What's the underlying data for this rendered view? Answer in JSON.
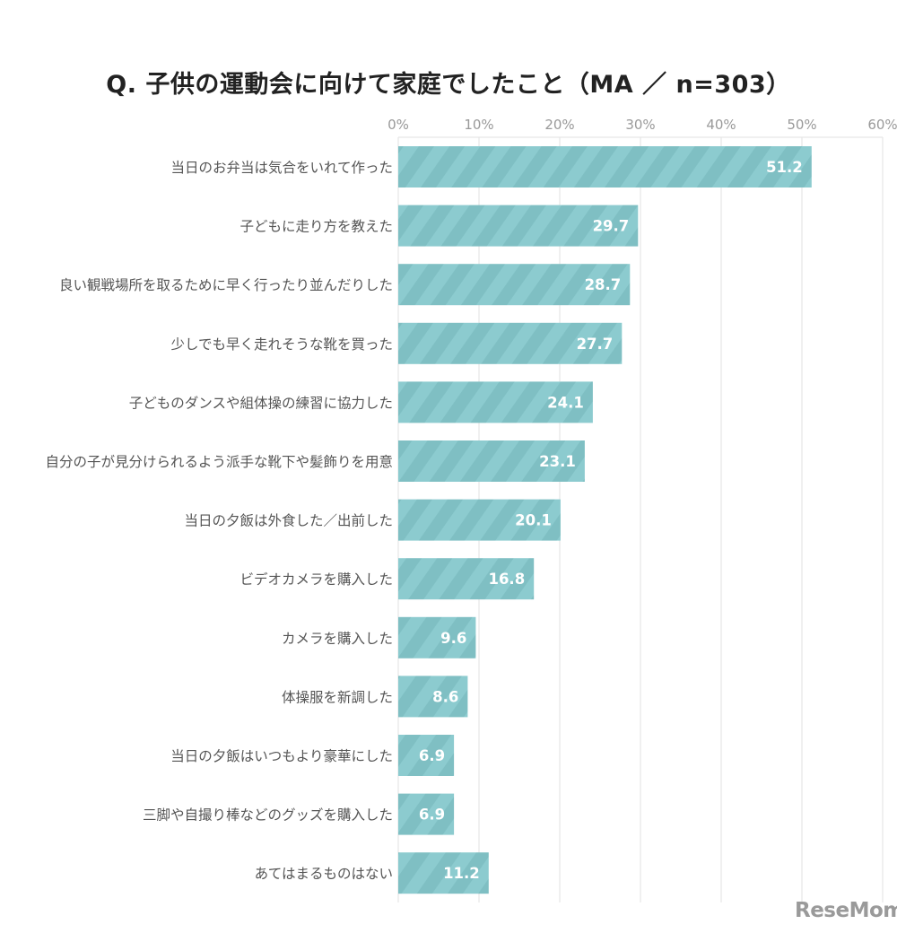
{
  "chart_data": {
    "type": "bar",
    "orientation": "horizontal",
    "title": "Q. 子供の運動会に向けて家庭でしたこと（MA ／ n=303）",
    "xlim": [
      0,
      60
    ],
    "xticks": [
      "0%",
      "10%",
      "20%",
      "30%",
      "40%",
      "50%",
      "60%"
    ],
    "grid": true,
    "categories": [
      "当日のお弁当は気合をいれて作った",
      "子どもに走り方を教えた",
      "良い観戦場所を取るために早く行ったり並んだりした",
      "少しでも早く走れそうな靴を買った",
      "子どものダンスや組体操の練習に協力した",
      "自分の子が見分けられるよう派手な靴下や髪飾りを用意",
      "当日の夕飯は外食した／出前した",
      "ビデオカメラを購入した",
      "カメラを購入した",
      "体操服を新調した",
      "当日の夕飯はいつもより豪華にした",
      "三脚や自撮り棒などのグッズを購入した",
      "あてはまるものはない"
    ],
    "values": [
      51.2,
      29.7,
      28.7,
      27.7,
      24.1,
      23.1,
      20.1,
      16.8,
      9.6,
      8.6,
      6.9,
      6.9,
      11.2
    ],
    "value_labels": [
      "51.2",
      "29.7",
      "28.7",
      "27.7",
      "24.1",
      "23.1",
      "20.1",
      "16.8",
      "9.6",
      "8.6",
      "6.9",
      "6.9",
      "11.2"
    ],
    "colors": {
      "bar": "#8ccbcf",
      "stripe": "#7fbfc3",
      "grid": "#e2e2e2"
    }
  },
  "logo_text": "ReseMom"
}
